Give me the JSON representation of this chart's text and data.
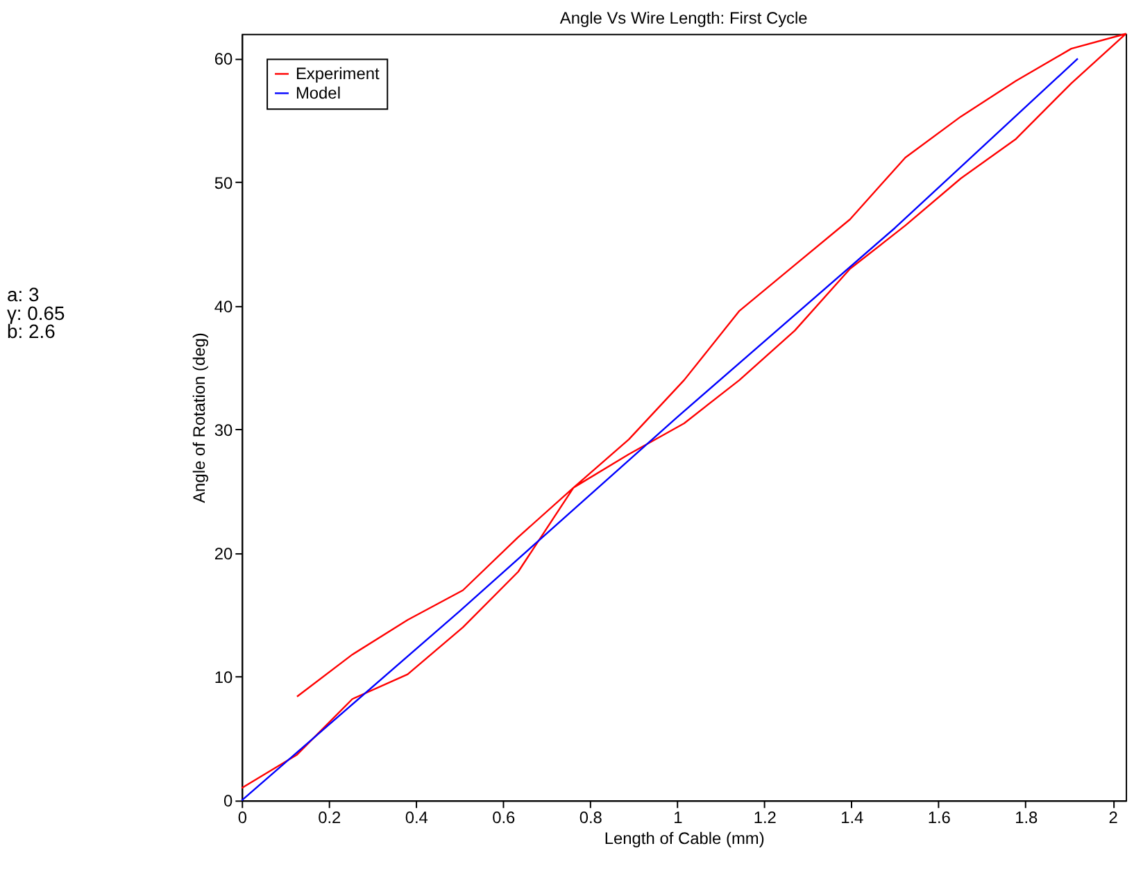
{
  "chart_data": {
    "type": "line",
    "title": "Angle Vs Wire Length: First Cycle",
    "xlabel": "Length of Cable (mm)",
    "ylabel": "Angle of Rotation (deg)",
    "series": [
      {
        "name": "Experiment",
        "color": "#ff0000",
        "x": [
          0,
          0.127,
          0.254,
          0.381,
          0.508,
          0.635,
          0.762,
          0.889,
          1.016,
          1.143,
          1.27,
          1.397,
          1.524,
          1.651,
          1.778,
          1.905,
          2.03,
          1.905,
          1.778,
          1.651,
          1.524,
          1.397,
          1.27,
          1.143,
          1.016,
          0.889,
          0.762,
          0.635,
          0.508,
          0.381,
          0.254,
          0.127
        ],
        "values": [
          1,
          3.7,
          8.2,
          10.2,
          14,
          18.5,
          25.3,
          28,
          30.5,
          34,
          38,
          43,
          46.5,
          50.3,
          53.5,
          58,
          62,
          60.8,
          58.2,
          55.3,
          52,
          47,
          43.3,
          39.6,
          34,
          29.2,
          25.3,
          21.3,
          17,
          14.6,
          11.8,
          8.4
        ]
      },
      {
        "name": "Model",
        "color": "#0000ff",
        "x": [
          0,
          0.5,
          1,
          1.5,
          1.92
        ],
        "values": [
          0,
          15.3,
          31,
          46.3,
          60
        ]
      }
    ],
    "xlim": [
      0,
      2.03
    ],
    "ylim": [
      0,
      62
    ],
    "xticks": [
      0,
      0.2,
      0.4,
      0.6,
      0.8,
      1,
      1.2,
      1.4,
      1.6,
      1.8,
      2
    ],
    "yticks": [
      0,
      10,
      20,
      30,
      40,
      50,
      60
    ],
    "grid": false,
    "legend": "top left",
    "line_style": "solid",
    "marker": "none",
    "annotations": [
      "a: 3",
      "γ: 0.65",
      "b: 2.6"
    ]
  }
}
